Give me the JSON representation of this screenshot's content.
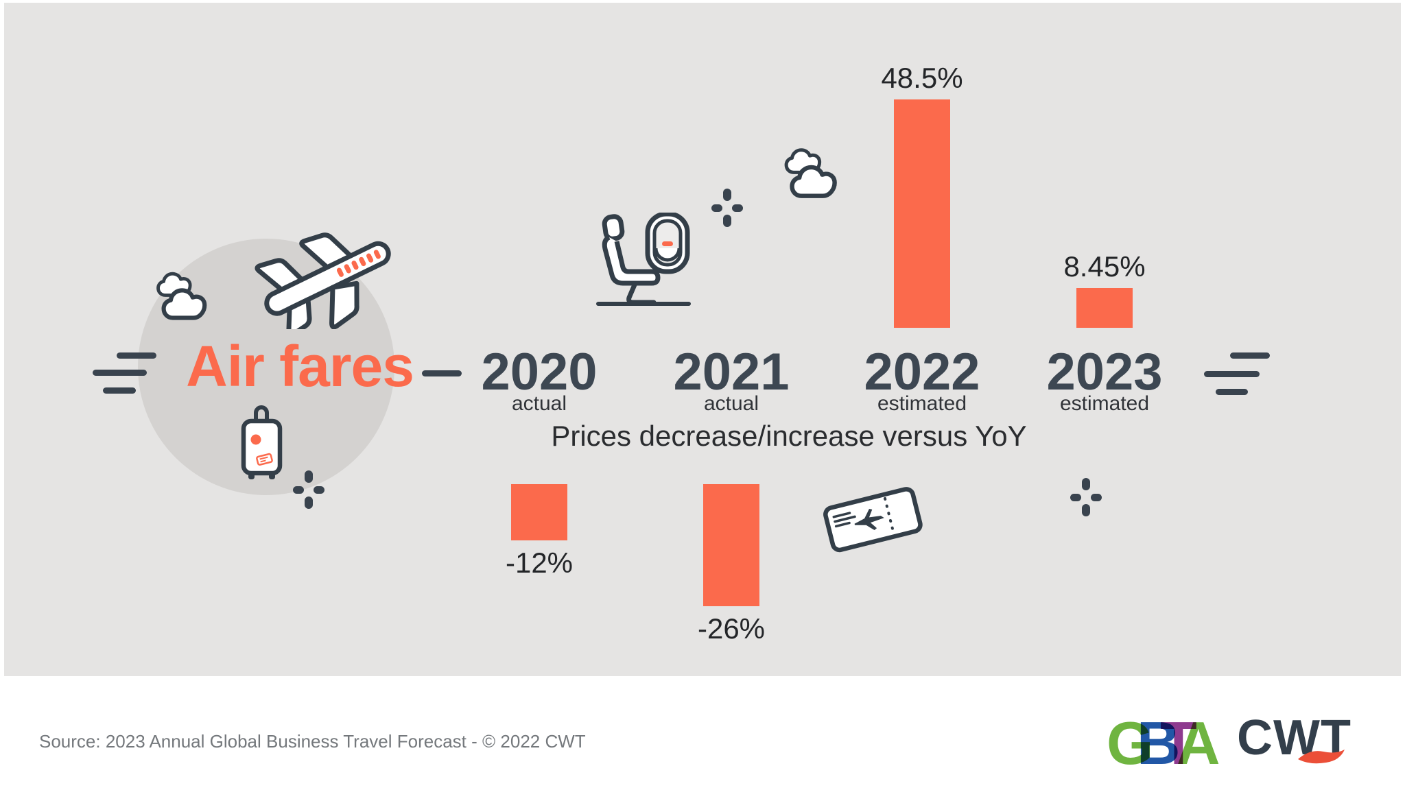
{
  "header": {
    "title": "Air fares"
  },
  "chart_data": {
    "type": "bar",
    "title": "Air fares",
    "subtitle": "Prices decrease/increase versus YoY",
    "categories": [
      "2020",
      "2021",
      "2022",
      "2023"
    ],
    "category_notes": [
      "actual",
      "actual",
      "estimated",
      "estimated"
    ],
    "values": [
      -12,
      -26,
      48.5,
      8.45
    ],
    "value_labels": [
      "-12%",
      "-26%",
      "48.5%",
      "8.45%"
    ],
    "unit": "% year-over-year",
    "bar_color": "#FB6A4C",
    "baseline": 0,
    "grid": false,
    "legend": "none",
    "layout": "positive bars above category labels, negative bars below subtitle"
  },
  "icons": {
    "airplane-icon": "outlined jet tilted upward with orange window dashes",
    "clouds-left-icon": "two outlined clouds beside circle",
    "clouds-top-icon": "two outlined clouds above 2021 column",
    "suitcase-icon": "rolling suitcase with orange dot and orange luggage tag",
    "seat-window-icon": "airplane seat beside cabin window with orange dash",
    "ticket-icon": "tilted flight ticket with plane silhouette and perforation",
    "sparkle-plus-icon": "plus made of four rounded dashes",
    "speed-lines-icon": "three horizontal motion dashes",
    "connector-dash-icon": "single horizontal dash between title and 2020"
  },
  "colors": {
    "accent_orange": "#FB6A4C",
    "slate_icons": "#333E48",
    "slate_text": "#3D4752",
    "text_dark": "#232528",
    "panel_gray": "#E5E4E3",
    "circle_gray": "#D4D2D0",
    "source_gray": "#74787C"
  },
  "footer": {
    "source": "Source: 2023 Annual Global Business Travel Forecast - © 2022 CWT",
    "logos": {
      "gbta": {
        "letters": [
          "G",
          "B",
          "T",
          "A"
        ],
        "letter_colors": [
          "#6FB440",
          "#2157A6",
          "#8E3A8F",
          "#6FB440"
        ]
      },
      "cwt": {
        "text": "CWT",
        "color": "#333F4B",
        "swoosh_color": "#EB4F38"
      }
    }
  }
}
